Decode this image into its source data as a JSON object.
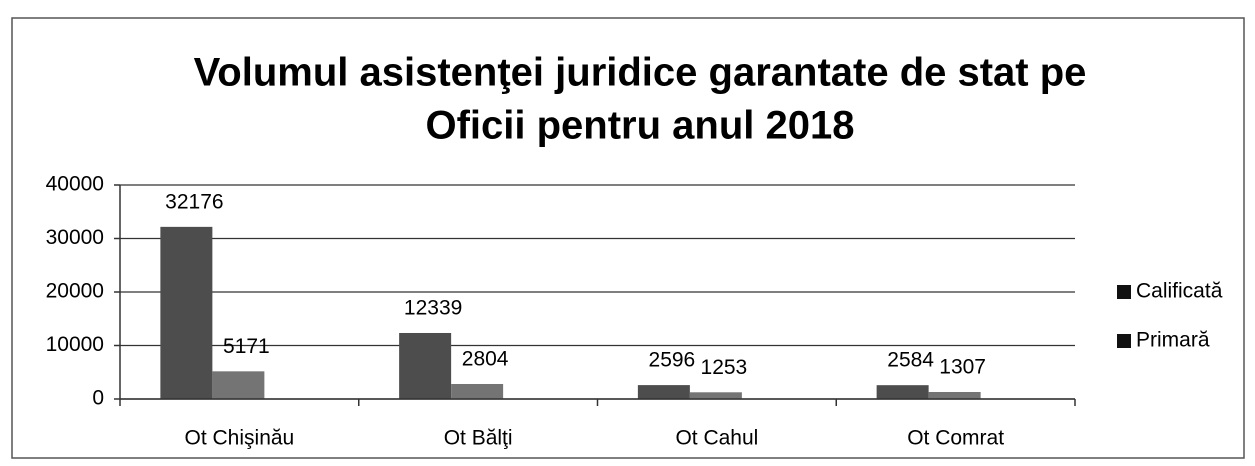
{
  "chart_data": {
    "type": "bar",
    "title": [
      "Volumul asistenţei juridice garantate de stat pe",
      "Oficii pentru anul 2018"
    ],
    "categories": [
      "Ot Chişinău",
      "Ot Bălţi",
      "Ot Cahul",
      "Ot Comrat"
    ],
    "series": [
      {
        "name": "Calificată",
        "color": "#4d4d4d",
        "values": [
          32176,
          12339,
          2596,
          2584
        ]
      },
      {
        "name": "Primară",
        "color": "#747474",
        "values": [
          5171,
          2804,
          1253,
          1307
        ]
      }
    ],
    "ylim": [
      0,
      40000
    ],
    "yticks": [
      0,
      10000,
      20000,
      30000,
      40000
    ],
    "grid": true,
    "legend": "right"
  }
}
